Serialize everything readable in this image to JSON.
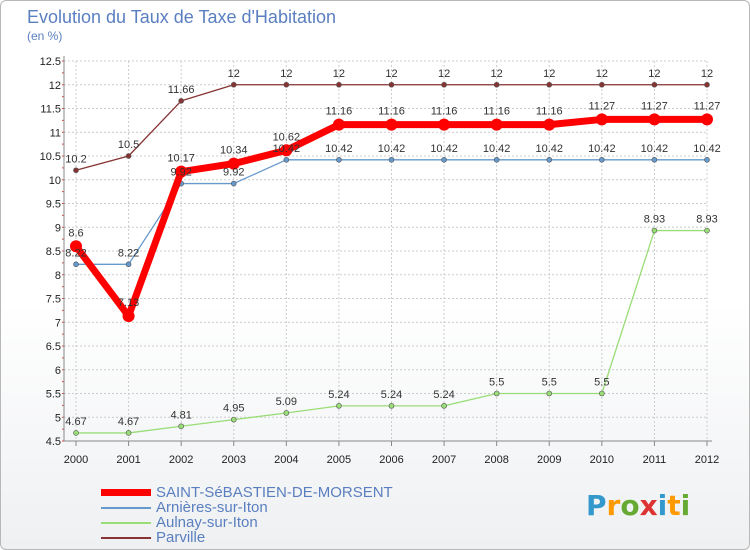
{
  "header": {
    "title": "Evolution du Taux de Taxe d'Habitation",
    "subtitle": "(en %)"
  },
  "colors": {
    "saint_sebastien": "#ff0000",
    "arnieres": "#6699cc",
    "aulnay": "#99dd77",
    "parville": "#883333",
    "grid": "#cccccc"
  },
  "chart_data": {
    "type": "line",
    "title": "Evolution du Taux de Taxe d'Habitation",
    "ylabel": "(en %)",
    "xlabel": "",
    "categories": [
      "2000",
      "2001",
      "2002",
      "2003",
      "2004",
      "2005",
      "2006",
      "2007",
      "2008",
      "2009",
      "2010",
      "2011",
      "2012"
    ],
    "y_ticks": [
      "4.5",
      "5",
      "5.5",
      "6",
      "6.5",
      "7",
      "7.5",
      "8",
      "8.5",
      "9",
      "9.5",
      "10",
      "10.5",
      "11",
      "11.5",
      "12",
      "12.5"
    ],
    "ylim": [
      4.5,
      12.5
    ],
    "grid": true,
    "series": [
      {
        "name": "Parville",
        "color": "#883333",
        "width": 1.3,
        "marker": 5,
        "values": [
          10.2,
          10.5,
          11.66,
          12,
          12,
          12,
          12,
          12,
          12,
          12,
          12,
          12,
          12
        ],
        "labels": [
          "10.2",
          "10.5",
          "11.66",
          "12",
          "12",
          "12",
          "12",
          "12",
          "12",
          "12",
          "12",
          "12",
          "12"
        ]
      },
      {
        "name": "Arnières-sur-Iton",
        "color": "#6699cc",
        "width": 1.3,
        "marker": 5,
        "values": [
          8.22,
          8.22,
          9.92,
          9.92,
          10.42,
          10.42,
          10.42,
          10.42,
          10.42,
          10.42,
          10.42,
          10.42,
          10.42
        ],
        "labels": [
          "8.22",
          "8.22",
          "9.92",
          "9.92",
          "10.42",
          "10.42",
          "10.42",
          "10.42",
          "10.42",
          "10.42",
          "10.42",
          "10.42",
          "10.42"
        ]
      },
      {
        "name": "Aulnay-sur-Iton",
        "color": "#99dd77",
        "width": 1.3,
        "marker": 5,
        "values": [
          4.67,
          4.67,
          4.81,
          4.95,
          5.09,
          5.24,
          5.24,
          5.24,
          5.5,
          5.5,
          5.5,
          8.93,
          8.93
        ],
        "labels": [
          "4.67",
          "4.67",
          "4.81",
          "4.95",
          "5.09",
          "5.24",
          "5.24",
          "5.24",
          "5.5",
          "5.5",
          "5.5",
          "8.93",
          "8.93"
        ]
      },
      {
        "name": "SAINT-SéBASTIEN-DE-MORSENT",
        "color": "#ff0000",
        "width": 7,
        "marker": 12,
        "values": [
          8.6,
          7.13,
          10.17,
          10.34,
          10.62,
          11.16,
          11.16,
          11.16,
          11.16,
          11.16,
          11.27,
          11.27,
          11.27
        ],
        "labels": [
          "8.6",
          "7.13",
          "10.17",
          "10.34",
          "10.62",
          "11.16",
          "11.16",
          "11.16",
          "11.16",
          "11.16",
          "11.27",
          "11.27",
          "11.27"
        ]
      }
    ],
    "legend": [
      "SAINT-SéBASTIEN-DE-MORSENT",
      "Arnières-sur-Iton",
      "Aulnay-sur-Iton",
      "Parville"
    ]
  },
  "logo": {
    "letters": [
      "P",
      "r",
      "o",
      "x",
      "i",
      "t",
      "i"
    ],
    "colors": [
      "#3399cc",
      "#ff9900",
      "#66aa33",
      "#dd3333",
      "#3399cc",
      "#ff9900",
      "#66aa33"
    ]
  }
}
